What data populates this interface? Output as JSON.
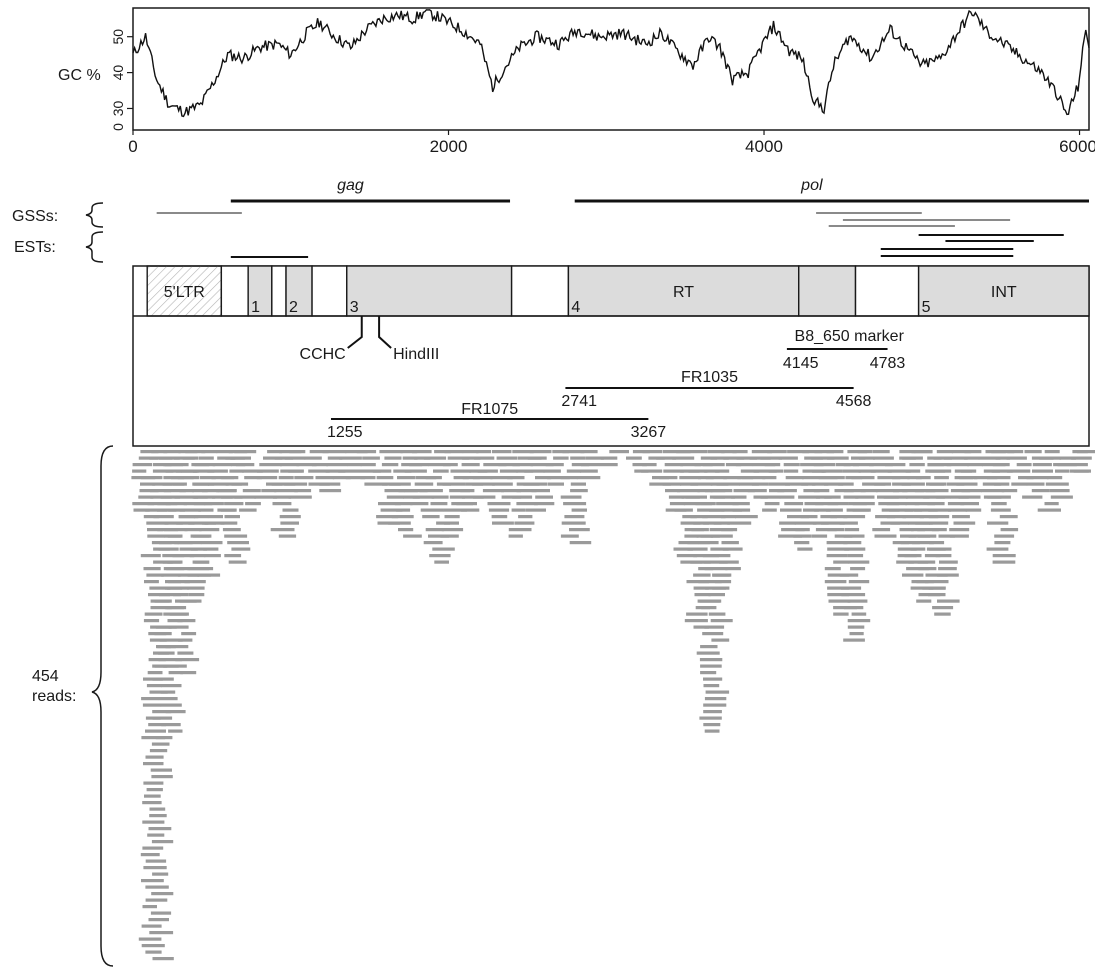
{
  "gc_plot": {
    "ylabel": "GC %",
    "y_ticks": [
      "30",
      "40",
      "50"
    ],
    "y_axis_zero": "0",
    "x_ticks": [
      "0",
      "2000",
      "4000",
      "6000"
    ],
    "xlim": [
      0,
      6060
    ],
    "ylim": [
      24,
      58
    ]
  },
  "genes": [
    {
      "label": "gag",
      "start": 620,
      "end": 2390
    },
    {
      "label": "pol",
      "start": 2800,
      "end": 6060
    }
  ],
  "tracks": {
    "gss_label": "GSSs:",
    "est_label": "ESTs:",
    "gss": [
      {
        "start": 150,
        "end": 690,
        "color": "#8a8a8a"
      },
      {
        "start": 4330,
        "end": 5000,
        "color": "#8a8a8a"
      },
      {
        "start": 4500,
        "end": 5560,
        "color": "#8a8a8a"
      },
      {
        "start": 4410,
        "end": 5210,
        "color": "#8a8a8a"
      }
    ],
    "est": [
      {
        "start": 620,
        "end": 1110
      },
      {
        "start": 4980,
        "end": 5900
      },
      {
        "start": 5150,
        "end": 5710
      },
      {
        "start": 4740,
        "end": 5580
      },
      {
        "start": 4740,
        "end": 5580
      }
    ]
  },
  "domains": [
    {
      "label": "5'LTR",
      "start": 90,
      "end": 560,
      "hatched": true
    },
    {
      "label": "",
      "start": 560,
      "end": 730,
      "fill": "#ffffff"
    },
    {
      "label": "1",
      "start": 730,
      "end": 880,
      "fill": "#dcdcdc"
    },
    {
      "label": "",
      "start": 880,
      "end": 970,
      "fill": "#ffffff"
    },
    {
      "label": "2",
      "start": 970,
      "end": 1135,
      "fill": "#dcdcdc"
    },
    {
      "label": "",
      "start": 1135,
      "end": 1355,
      "fill": "#ffffff"
    },
    {
      "label": "3",
      "start": 1355,
      "end": 2400,
      "fill": "#dcdcdc"
    },
    {
      "label": "",
      "start": 2400,
      "end": 2760,
      "fill": "#ffffff"
    },
    {
      "label": "4",
      "start": 2760,
      "end": 4220,
      "fill": "#dcdcdc"
    },
    {
      "label": "RT",
      "start": 2760,
      "end": 4220,
      "fill": "none"
    },
    {
      "label": "",
      "start": 4220,
      "end": 4580,
      "fill": "#dcdcdc"
    },
    {
      "label": "",
      "start": 4580,
      "end": 4980,
      "fill": "#ffffff"
    },
    {
      "label": "5",
      "start": 4980,
      "end": 6060,
      "fill": "#dcdcdc"
    },
    {
      "label": "INT",
      "start": 4980,
      "end": 6060,
      "fill": "none"
    }
  ],
  "features": {
    "cchc": {
      "label": "CCHC",
      "pos": 1450
    },
    "hindiii": {
      "label": "HindIII",
      "pos": 1560
    }
  },
  "markers": [
    {
      "label": "B8_650 marker",
      "start": 4145,
      "end": 4783,
      "start_label": "4145",
      "end_label": "4783"
    },
    {
      "label": "FR1035",
      "start": 2741,
      "end": 4568,
      "start_label": "2741",
      "end_label": "4568"
    },
    {
      "label": "FR1075",
      "start": 1255,
      "end": 3267,
      "start_label": "1255",
      "end_label": "3267"
    }
  ],
  "reads": {
    "label": "454\nreads:",
    "color": "#9a9a9a",
    "columns": [
      {
        "pos": 70,
        "depth": 10
      },
      {
        "pos": 150,
        "depth": 80
      },
      {
        "pos": 230,
        "depth": 45
      },
      {
        "pos": 310,
        "depth": 35
      },
      {
        "pos": 390,
        "depth": 24
      },
      {
        "pos": 470,
        "depth": 20
      },
      {
        "pos": 550,
        "depth": 12
      },
      {
        "pos": 640,
        "depth": 18
      },
      {
        "pos": 720,
        "depth": 10
      },
      {
        "pos": 880,
        "depth": 8
      },
      {
        "pos": 980,
        "depth": 14
      },
      {
        "pos": 1070,
        "depth": 8
      },
      {
        "pos": 1180,
        "depth": 6
      },
      {
        "pos": 1290,
        "depth": 7
      },
      {
        "pos": 1400,
        "depth": 5
      },
      {
        "pos": 1500,
        "depth": 6
      },
      {
        "pos": 1620,
        "depth": 12
      },
      {
        "pos": 1730,
        "depth": 14
      },
      {
        "pos": 1830,
        "depth": 9
      },
      {
        "pos": 1930,
        "depth": 18
      },
      {
        "pos": 2050,
        "depth": 14
      },
      {
        "pos": 2150,
        "depth": 10
      },
      {
        "pos": 2260,
        "depth": 8
      },
      {
        "pos": 2360,
        "depth": 12
      },
      {
        "pos": 2470,
        "depth": 14
      },
      {
        "pos": 2570,
        "depth": 10
      },
      {
        "pos": 2670,
        "depth": 6
      },
      {
        "pos": 2800,
        "depth": 15
      },
      {
        "pos": 2920,
        "depth": 5
      },
      {
        "pos": 3050,
        "depth": 3
      },
      {
        "pos": 3180,
        "depth": 4
      },
      {
        "pos": 3300,
        "depth": 6
      },
      {
        "pos": 3420,
        "depth": 10
      },
      {
        "pos": 3520,
        "depth": 18
      },
      {
        "pos": 3610,
        "depth": 28
      },
      {
        "pos": 3690,
        "depth": 44
      },
      {
        "pos": 3770,
        "depth": 22
      },
      {
        "pos": 3870,
        "depth": 12
      },
      {
        "pos": 3970,
        "depth": 8
      },
      {
        "pos": 4060,
        "depth": 10
      },
      {
        "pos": 4180,
        "depth": 14
      },
      {
        "pos": 4280,
        "depth": 16
      },
      {
        "pos": 4380,
        "depth": 14
      },
      {
        "pos": 4470,
        "depth": 26
      },
      {
        "pos": 4560,
        "depth": 30
      },
      {
        "pos": 4660,
        "depth": 10
      },
      {
        "pos": 4770,
        "depth": 14
      },
      {
        "pos": 4870,
        "depth": 18
      },
      {
        "pos": 4960,
        "depth": 22
      },
      {
        "pos": 5050,
        "depth": 24
      },
      {
        "pos": 5130,
        "depth": 26
      },
      {
        "pos": 5230,
        "depth": 14
      },
      {
        "pos": 5330,
        "depth": 10
      },
      {
        "pos": 5430,
        "depth": 8
      },
      {
        "pos": 5520,
        "depth": 18
      },
      {
        "pos": 5630,
        "depth": 6
      },
      {
        "pos": 5740,
        "depth": 8
      },
      {
        "pos": 5850,
        "depth": 10
      },
      {
        "pos": 5960,
        "depth": 4
      },
      {
        "pos": 6040,
        "depth": 4
      }
    ]
  }
}
